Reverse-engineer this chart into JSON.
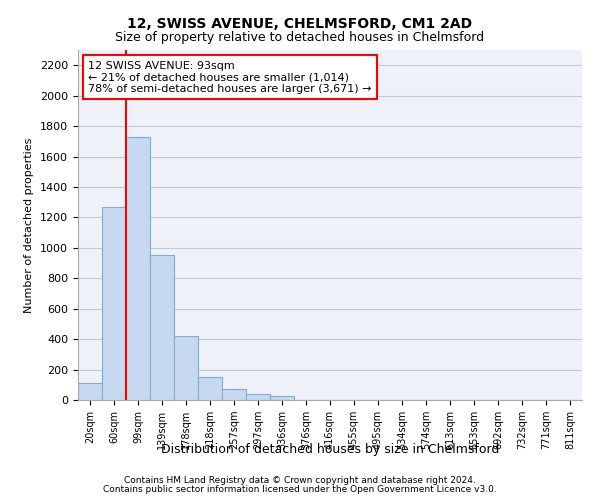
{
  "title1": "12, SWISS AVENUE, CHELMSFORD, CM1 2AD",
  "title2": "Size of property relative to detached houses in Chelmsford",
  "xlabel": "Distribution of detached houses by size in Chelmsford",
  "ylabel": "Number of detached properties",
  "footer1": "Contains HM Land Registry data © Crown copyright and database right 2024.",
  "footer2": "Contains public sector information licensed under the Open Government Licence v3.0.",
  "bin_labels": [
    "20sqm",
    "60sqm",
    "99sqm",
    "139sqm",
    "178sqm",
    "218sqm",
    "257sqm",
    "297sqm",
    "336sqm",
    "376sqm",
    "416sqm",
    "455sqm",
    "495sqm",
    "534sqm",
    "574sqm",
    "613sqm",
    "653sqm",
    "692sqm",
    "732sqm",
    "771sqm",
    "811sqm"
  ],
  "bar_values": [
    110,
    1270,
    1730,
    950,
    420,
    150,
    75,
    40,
    25,
    0,
    0,
    0,
    0,
    0,
    0,
    0,
    0,
    0,
    0,
    0,
    0
  ],
  "bar_color": "#c6d9f0",
  "bar_edge_color": "#7bafd4",
  "grid_color": "#c0c8d8",
  "bg_color": "#eef2f8",
  "red_line_x": 1.5,
  "annotation_text": "12 SWISS AVENUE: 93sqm\n← 21% of detached houses are smaller (1,014)\n78% of semi-detached houses are larger (3,671) →",
  "annotation_box_color": "white",
  "annotation_edge_color": "red",
  "ylim": [
    0,
    2300
  ],
  "yticks": [
    0,
    200,
    400,
    600,
    800,
    1000,
    1200,
    1400,
    1600,
    1800,
    2000,
    2200
  ]
}
